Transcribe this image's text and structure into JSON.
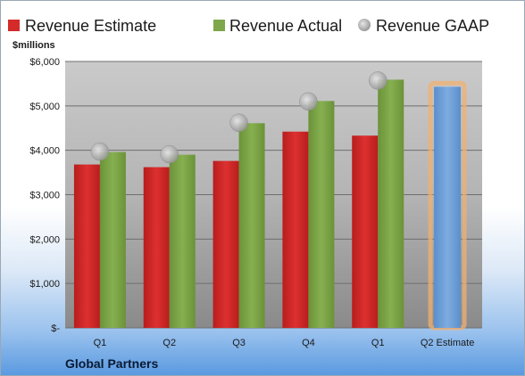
{
  "legend": {
    "estimate": "Revenue Estimate",
    "actual": "Revenue Actual",
    "gaap": "Revenue GAAP"
  },
  "unit_label": "$millions",
  "company": "Global Partners",
  "colors": {
    "estimate": "#d42a2a",
    "actual": "#7ea64a",
    "gaap": "#b8b8b8",
    "forecast": "#6a9fd8",
    "forecast_glow": "#f0b070"
  },
  "chart_data": {
    "type": "bar",
    "categories": [
      "Q1",
      "Q2",
      "Q3",
      "Q4",
      "Q1",
      "Q2 Estimate"
    ],
    "series": [
      {
        "name": "Revenue Estimate",
        "values": [
          3680,
          3620,
          3760,
          4420,
          4330,
          null
        ]
      },
      {
        "name": "Revenue Actual",
        "values": [
          3960,
          3900,
          4610,
          5110,
          5590,
          null
        ]
      },
      {
        "name": "Revenue GAAP",
        "values": [
          3970,
          3910,
          4620,
          5100,
          5570,
          null
        ]
      },
      {
        "name": "Q2 Estimate",
        "values": [
          null,
          null,
          null,
          null,
          null,
          5430
        ]
      }
    ],
    "ytick_labels": [
      "$-",
      "$1,000",
      "$2,000",
      "$3,000",
      "$4,000",
      "$5,000",
      "$6,000"
    ],
    "ylim": [
      0,
      6000
    ],
    "grid": true,
    "legend_position": "top"
  }
}
